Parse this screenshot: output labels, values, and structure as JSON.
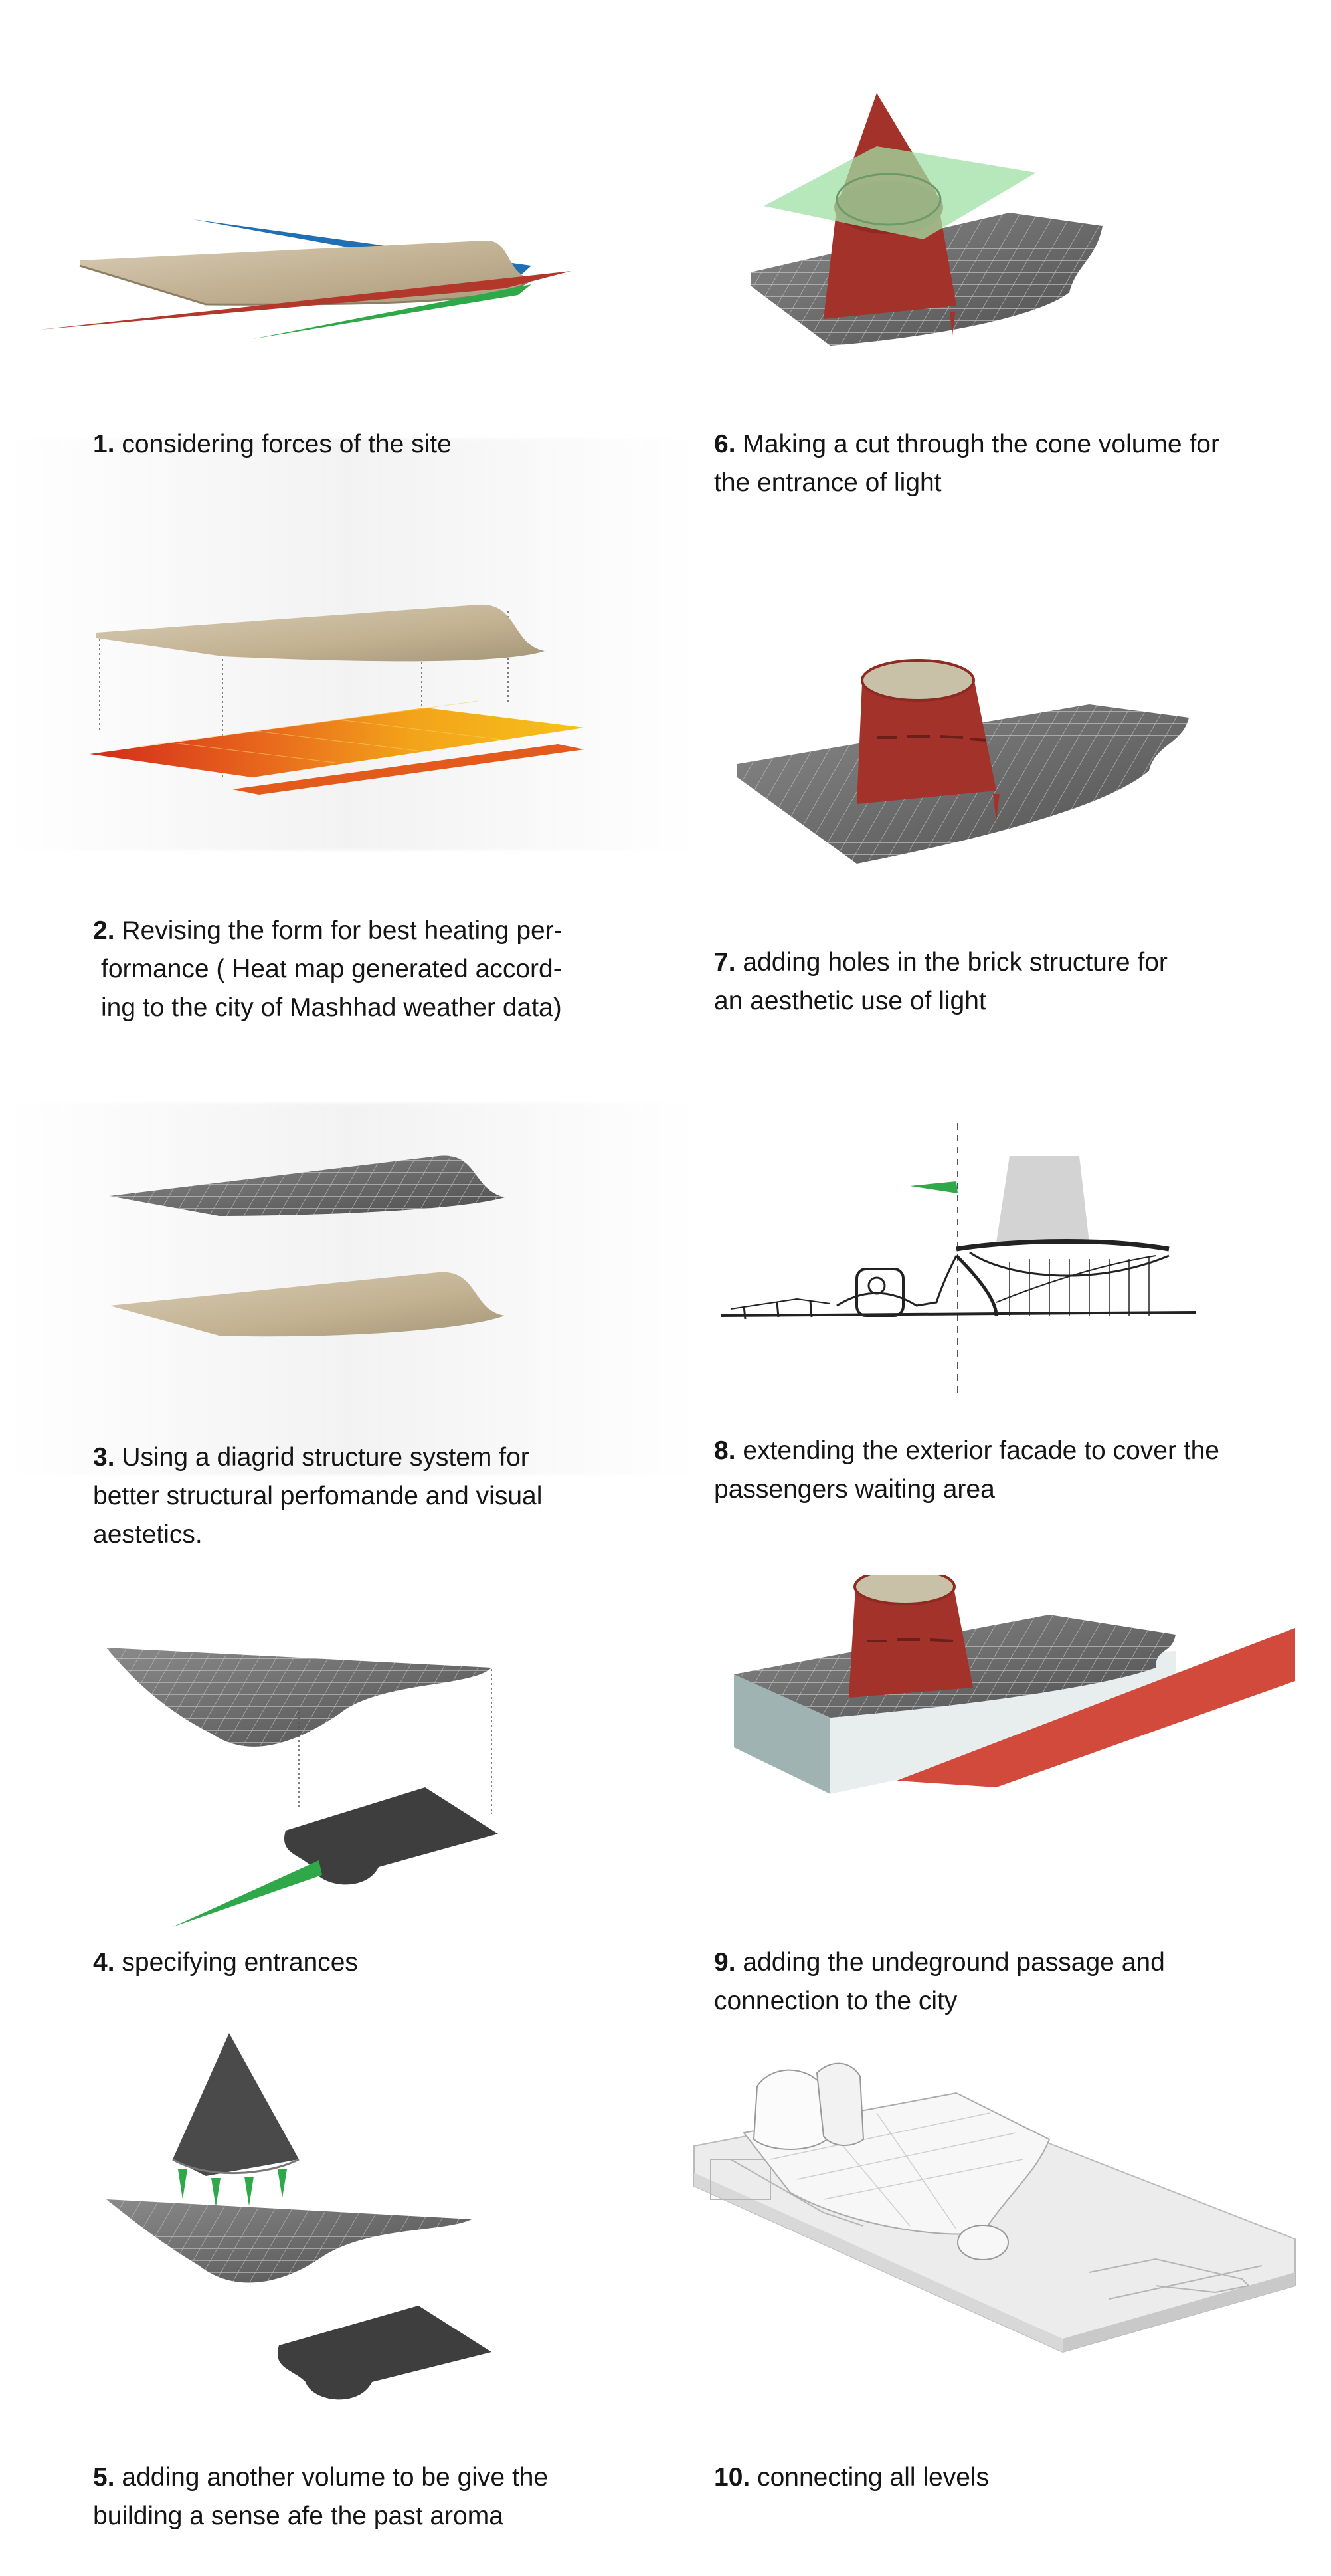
{
  "steps": [
    {
      "num": "1.",
      "text": "considering forces of the site",
      "lines": [
        "considering forces of the site"
      ]
    },
    {
      "num": "2.",
      "text": "Revising the form for best heating performance ( Heat map generated according to the city of Mashhad weather data)",
      "lines": [
        "Revising the form for best heating per-",
        "formance ( Heat map generated accord-",
        "ing to the city of Mashhad weather data)"
      ]
    },
    {
      "num": "3.",
      "text": "Using a diagrid structure system for better structural perfomande and visual aestetics.",
      "lines": [
        "Using a diagrid structure system for",
        "better structural perfomande and visual",
        "aestetics."
      ]
    },
    {
      "num": "4.",
      "text": "specifying entrances",
      "lines": [
        "specifying entrances"
      ]
    },
    {
      "num": "5.",
      "text": "adding another volume to be give the building a sense afe the past aroma",
      "lines": [
        "adding another volume to be give the",
        "building a sense afe the past aroma"
      ]
    },
    {
      "num": "6.",
      "text": "Making a cut through the cone volume for the entrance of light",
      "lines": [
        "Making a cut through the cone volume for",
        "the entrance of light"
      ]
    },
    {
      "num": "7.",
      "text": "adding holes in the brick structure for an aesthetic use of light",
      "lines": [
        "adding holes in the brick structure for",
        "an aesthetic use of light"
      ]
    },
    {
      "num": "8.",
      "text": "extending the exterior facade to cover the passengers waiting area",
      "lines": [
        "extending the exterior facade to cover the",
        "passengers waiting area"
      ]
    },
    {
      "num": "9.",
      "text": "adding the undeground passage and connection to the city",
      "lines": [
        "adding the undeground passage and",
        "connection to the city"
      ]
    },
    {
      "num": "10.",
      "text": "connecting all levels",
      "lines": [
        "connecting all levels"
      ]
    }
  ],
  "colors": {
    "roof_beige": "#c9bba0",
    "roof_grey": "#6f6f6f",
    "brick_red": "#b23a2c",
    "force_red": "#c0392b",
    "force_blue": "#1f6fb5",
    "force_green": "#2fa84a",
    "light_green": "#9fe0a6",
    "heat_yellow": "#f6c21a",
    "heat_orange": "#e8671d",
    "heat_red": "#d32a1a",
    "white_model": "#eeeeee",
    "teal_base": "#9fb3b3"
  }
}
